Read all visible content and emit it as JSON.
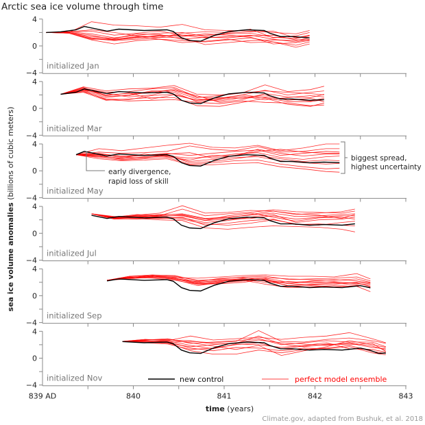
{
  "chart_data": {
    "type": "line",
    "title": "Arctic sea ice volume through time",
    "xlabel_bold": "time",
    "xlabel_rest": " (years)",
    "ylabel_bold": "sea ice volume anomalies",
    "ylabel_rest": " (billions of cubic meters)",
    "xlim": [
      839,
      843
    ],
    "ylim": [
      -4,
      4
    ],
    "x_ticks": [
      839,
      839.5,
      840,
      840.5,
      841,
      841.5,
      842,
      842.5,
      843
    ],
    "x_tick_labels": [
      {
        "value": 839,
        "label": "839 AD"
      },
      {
        "value": 840,
        "label": "840"
      },
      {
        "value": 841,
        "label": "841"
      },
      {
        "value": 842,
        "label": "842"
      },
      {
        "value": 843,
        "label": "843"
      }
    ],
    "y_ticks": [
      -4,
      -2,
      0,
      2,
      4
    ],
    "y_tick_labels": [
      {
        "value": 4,
        "label": "4"
      },
      {
        "value": 0,
        "label": "0"
      },
      {
        "value": -4,
        "label": "−4"
      }
    ],
    "grid": false,
    "colors": {
      "control": "#000000",
      "ensemble": "#ff0000",
      "panel_label": "#777777",
      "axis": "#888888"
    },
    "legend": {
      "placement": "bottom-center (last panel)",
      "control_label": "new control",
      "ensemble_label": "perfect model ensemble"
    },
    "control": {
      "name": "new control",
      "x": [
        839.04,
        839.2,
        839.37,
        839.46,
        839.71,
        839.84,
        840.12,
        840.37,
        840.44,
        840.53,
        840.62,
        840.74,
        840.89,
        841.05,
        841.25,
        841.44,
        841.5,
        841.62,
        841.75,
        841.94,
        842.1,
        842.3,
        842.5,
        842.6,
        842.7,
        842.83
      ],
      "y": [
        2.0,
        2.1,
        2.4,
        2.9,
        2.2,
        2.5,
        2.3,
        2.4,
        2.15,
        1.2,
        0.8,
        0.7,
        1.55,
        2.15,
        2.4,
        2.3,
        1.9,
        1.4,
        1.4,
        1.2,
        1.3,
        1.2,
        1.5,
        1.2,
        0.7,
        0.8
      ]
    },
    "panels": [
      {
        "label": "initialized Jan",
        "x": [
          839.04,
          839.29,
          839.54,
          839.79,
          840.04,
          840.29,
          840.54,
          840.79,
          841.04,
          841.29,
          841.54,
          841.79,
          841.94
        ],
        "ensemble": [
          [
            2.0,
            2.0,
            3.6,
            3.1,
            3.0,
            2.8,
            3.2,
            2.4,
            2.3,
            2.2,
            2.0,
            1.8,
            2.3
          ],
          [
            2.0,
            2.0,
            1.2,
            0.9,
            1.3,
            1.5,
            1.6,
            1.2,
            1.4,
            1.6,
            1.0,
            0.6,
            1.0
          ],
          [
            2.0,
            1.9,
            0.9,
            0.3,
            0.8,
            1.0,
            0.8,
            0.6,
            0.9,
            1.2,
            0.6,
            0.1,
            0.6
          ],
          [
            2.0,
            2.1,
            1.8,
            1.2,
            1.6,
            1.9,
            2.0,
            1.4,
            1.8,
            1.9,
            1.3,
            1.1,
            1.5
          ],
          [
            2.0,
            1.9,
            1.1,
            0.8,
            1.0,
            1.3,
            1.2,
            0.2,
            0.5,
            0.8,
            0.9,
            0.8,
            1.2
          ],
          [
            2.0,
            2.0,
            1.4,
            1.1,
            1.8,
            1.7,
            1.0,
            1.3,
            1.2,
            1.5,
            1.6,
            0.9,
            0.9
          ],
          [
            2.0,
            2.1,
            2.2,
            1.6,
            1.9,
            2.2,
            1.6,
            1.6,
            1.9,
            2.1,
            2.2,
            1.2,
            1.6
          ],
          [
            2.0,
            1.9,
            1.0,
            1.0,
            1.4,
            1.0,
            0.5,
            0.7,
            1.0,
            0.5,
            0.6,
            -0.2,
            0.3
          ],
          [
            2.0,
            2.0,
            1.6,
            0.9,
            1.2,
            1.6,
            1.4,
            1.8,
            1.6,
            1.3,
            0.3,
            0.5,
            0.8
          ],
          [
            2.0,
            2.1,
            2.4,
            2.0,
            1.5,
            1.3,
            1.9,
            2.1,
            2.0,
            2.5,
            1.2,
            1.5,
            2.0
          ]
        ]
      },
      {
        "label": "initialized Mar",
        "x": [
          839.2,
          839.45,
          839.7,
          839.95,
          840.2,
          840.45,
          840.7,
          840.95,
          841.2,
          841.45,
          841.7,
          841.95,
          842.1
        ],
        "ensemble": [
          [
            2.1,
            3.2,
            2.6,
            2.9,
            3.0,
            3.4,
            2.1,
            2.0,
            2.3,
            3.5,
            2.5,
            2.8,
            3.3
          ],
          [
            2.1,
            2.7,
            1.6,
            2.0,
            2.6,
            2.6,
            1.4,
            1.1,
            1.6,
            2.0,
            1.2,
            1.5,
            1.0
          ],
          [
            2.1,
            2.4,
            1.2,
            1.4,
            1.6,
            1.6,
            0.4,
            0.3,
            0.9,
            1.5,
            0.6,
            0.3,
            0.8
          ],
          [
            2.1,
            3.0,
            2.4,
            2.5,
            2.9,
            3.1,
            1.7,
            1.5,
            2.0,
            2.7,
            2.0,
            2.4,
            2.6
          ],
          [
            2.1,
            2.5,
            1.4,
            1.3,
            1.9,
            2.1,
            1.2,
            1.6,
            1.5,
            1.7,
            1.4,
            1.1,
            1.5
          ],
          [
            2.1,
            2.8,
            2.0,
            2.2,
            2.3,
            2.9,
            1.6,
            1.9,
            2.3,
            2.6,
            2.4,
            2.2,
            2.0
          ],
          [
            2.1,
            2.6,
            1.3,
            1.1,
            1.2,
            1.3,
            0.9,
            0.7,
            1.1,
            0.9,
            0.8,
            0.4,
            0.5
          ],
          [
            2.1,
            2.9,
            1.8,
            1.9,
            2.5,
            2.4,
            1.0,
            1.3,
            1.8,
            1.3,
            1.6,
            1.9,
            1.7
          ],
          [
            2.1,
            2.7,
            2.2,
            1.7,
            2.0,
            2.7,
            1.9,
            0.9,
            1.3,
            2.2,
            1.7,
            1.6,
            2.1
          ],
          [
            2.1,
            3.1,
            1.9,
            2.3,
            1.4,
            2.0,
            1.2,
            1.4,
            2.0,
            1.6,
            1.0,
            1.0,
            1.3
          ]
        ]
      },
      {
        "label": "initialized May",
        "x": [
          839.37,
          839.62,
          839.87,
          840.12,
          840.37,
          840.62,
          840.87,
          841.12,
          841.37,
          841.62,
          841.87,
          842.12,
          842.27
        ],
        "ensemble": [
          [
            2.4,
            3.3,
            3.0,
            3.4,
            3.8,
            4.1,
            3.5,
            3.4,
            3.8,
            3.0,
            3.4,
            4.0,
            4.0
          ],
          [
            2.4,
            2.8,
            2.6,
            2.7,
            2.9,
            3.7,
            3.2,
            3.0,
            3.6,
            2.8,
            2.9,
            3.3,
            3.3
          ],
          [
            2.4,
            2.2,
            1.8,
            2.1,
            2.3,
            1.4,
            1.7,
            2.0,
            2.1,
            1.5,
            1.2,
            1.0,
            1.1
          ],
          [
            2.4,
            2.0,
            1.6,
            1.8,
            2.0,
            1.0,
            1.2,
            1.5,
            1.6,
            1.0,
            0.6,
            0.3,
            0.4
          ],
          [
            2.4,
            2.6,
            2.1,
            2.3,
            2.6,
            2.3,
            2.6,
            2.9,
            3.1,
            2.3,
            2.6,
            2.9,
            2.8
          ],
          [
            2.4,
            1.8,
            1.5,
            1.6,
            1.8,
            0.9,
            0.9,
            1.1,
            1.2,
            0.6,
            0.3,
            -0.1,
            -0.2
          ],
          [
            2.4,
            2.4,
            2.0,
            2.0,
            2.2,
            1.9,
            2.1,
            2.5,
            2.7,
            2.0,
            1.7,
            2.1,
            2.2
          ],
          [
            2.4,
            2.1,
            1.9,
            2.5,
            2.1,
            1.6,
            2.3,
            2.2,
            3.2,
            2.6,
            2.2,
            2.5,
            2.5
          ],
          [
            2.4,
            2.3,
            1.7,
            1.9,
            2.4,
            1.2,
            1.4,
            1.8,
            2.3,
            1.8,
            1.4,
            1.6,
            1.5
          ],
          [
            2.4,
            2.5,
            2.2,
            2.3,
            2.5,
            2.7,
            1.9,
            2.3,
            2.9,
            3.2,
            2.8,
            2.6,
            2.6
          ]
        ]
      },
      {
        "label": "initialized Jul",
        "x": [
          839.54,
          839.79,
          840.04,
          840.29,
          840.54,
          840.79,
          841.04,
          841.29,
          841.54,
          841.79,
          842.04,
          842.29,
          842.44
        ],
        "ensemble": [
          [
            2.9,
            2.3,
            2.7,
            3.0,
            4.1,
            3.0,
            3.1,
            3.4,
            3.3,
            2.8,
            3.0,
            3.2,
            3.6
          ],
          [
            2.9,
            2.2,
            2.4,
            2.6,
            3.6,
            2.6,
            2.9,
            3.1,
            3.5,
            3.2,
            3.1,
            3.0,
            3.3
          ],
          [
            2.9,
            2.4,
            2.6,
            2.4,
            2.3,
            1.6,
            1.9,
            2.4,
            2.8,
            1.6,
            2.0,
            2.1,
            2.4
          ],
          [
            2.9,
            2.3,
            2.3,
            2.2,
            2.4,
            1.2,
            1.5,
            1.9,
            2.1,
            1.3,
            1.4,
            1.2,
            1.1
          ],
          [
            2.9,
            2.1,
            2.2,
            2.0,
            1.9,
            0.8,
            0.6,
            0.9,
            1.1,
            1.0,
            0.9,
            0.6,
            0.2
          ],
          [
            2.9,
            2.5,
            2.5,
            2.7,
            2.9,
            2.2,
            2.4,
            2.7,
            3.0,
            2.5,
            2.6,
            2.8,
            2.9
          ],
          [
            2.9,
            2.4,
            2.8,
            2.6,
            2.6,
            1.9,
            2.1,
            2.2,
            2.6,
            2.1,
            2.4,
            2.6,
            2.6
          ],
          [
            2.9,
            2.2,
            2.1,
            2.3,
            2.1,
            1.4,
            1.2,
            1.5,
            2.0,
            1.4,
            1.2,
            1.6,
            1.8
          ],
          [
            2.9,
            2.3,
            2.4,
            2.5,
            2.7,
            1.9,
            2.6,
            3.0,
            2.4,
            1.8,
            2.3,
            2.4,
            2.1
          ],
          [
            2.9,
            2.2,
            2.6,
            2.8,
            2.8,
            2.1,
            2.3,
            2.8,
            3.3,
            2.9,
            2.7,
            2.2,
            2.8
          ]
        ]
      },
      {
        "label": "initialized Sep",
        "x": [
          839.71,
          839.96,
          840.21,
          840.46,
          840.71,
          840.96,
          841.21,
          841.46,
          841.71,
          841.96,
          842.21,
          842.46,
          842.61
        ],
        "ensemble": [
          [
            2.3,
            2.7,
            3.0,
            2.7,
            2.6,
            2.8,
            3.0,
            3.1,
            2.9,
            2.9,
            2.8,
            3.3,
            2.5
          ],
          [
            2.3,
            2.9,
            3.1,
            3.0,
            2.2,
            2.5,
            2.8,
            2.9,
            2.4,
            2.5,
            2.6,
            2.8,
            2.2
          ],
          [
            2.3,
            2.6,
            2.9,
            2.6,
            1.9,
            2.2,
            2.4,
            2.6,
            2.0,
            2.1,
            2.0,
            1.9,
            1.4
          ],
          [
            2.3,
            2.8,
            2.7,
            2.5,
            1.8,
            1.9,
            2.3,
            1.7,
            1.2,
            1.3,
            1.5,
            1.4,
            0.6
          ],
          [
            2.3,
            2.5,
            2.8,
            2.4,
            1.5,
            2.0,
            2.2,
            2.4,
            1.8,
            1.6,
            1.7,
            2.0,
            1.8
          ],
          [
            2.3,
            2.9,
            3.0,
            2.9,
            2.3,
            2.4,
            2.5,
            2.2,
            1.5,
            1.7,
            1.9,
            1.6,
            1.2
          ],
          [
            2.3,
            2.7,
            2.6,
            2.3,
            1.7,
            2.1,
            2.6,
            2.7,
            2.5,
            2.4,
            2.3,
            2.5,
            2.0
          ],
          [
            2.3,
            2.6,
            2.9,
            2.8,
            2.0,
            2.3,
            2.4,
            2.0,
            2.1,
            1.9,
            2.1,
            1.8,
            1.6
          ],
          [
            2.3,
            2.8,
            2.8,
            2.5,
            2.1,
            2.6,
            2.7,
            2.3,
            1.8,
            2.2,
            2.4,
            2.2,
            1.9
          ],
          [
            2.3,
            2.7,
            3.0,
            2.6,
            1.7,
            1.8,
            2.0,
            2.5,
            1.4,
            1.5,
            1.3,
            1.5,
            1.3
          ]
        ]
      },
      {
        "label": "initialized Nov",
        "x": [
          839.88,
          840.13,
          840.38,
          840.63,
          840.88,
          841.13,
          841.38,
          841.63,
          841.88,
          842.13,
          842.38,
          842.63,
          842.78
        ],
        "ensemble": [
          [
            2.5,
            2.8,
            2.6,
            3.3,
            2.7,
            2.9,
            3.1,
            2.8,
            3.1,
            3.3,
            3.8,
            2.9,
            2.3
          ],
          [
            2.5,
            2.6,
            2.4,
            2.5,
            2.3,
            2.5,
            4.1,
            2.5,
            2.4,
            2.8,
            3.0,
            2.6,
            2.2
          ],
          [
            2.5,
            2.3,
            2.1,
            1.3,
            1.5,
            2.0,
            2.3,
            1.4,
            1.8,
            2.0,
            2.2,
            1.6,
            1.4
          ],
          [
            2.5,
            2.5,
            2.3,
            1.1,
            0.6,
            0.6,
            1.2,
            0.8,
            1.3,
            1.5,
            1.9,
            1.0,
            0.7
          ],
          [
            2.5,
            2.7,
            2.9,
            2.2,
            2.4,
            2.6,
            2.9,
            2.0,
            2.3,
            2.6,
            2.4,
            2.4,
            1.7
          ],
          [
            2.5,
            2.4,
            2.2,
            1.7,
            2.0,
            2.3,
            2.7,
            2.3,
            2.1,
            1.9,
            2.3,
            1.8,
            1.2
          ],
          [
            2.5,
            2.6,
            2.5,
            1.5,
            1.1,
            1.6,
            1.5,
            1.1,
            1.5,
            1.4,
            1.7,
            0.8,
            0.5
          ],
          [
            2.5,
            2.8,
            2.7,
            2.6,
            2.1,
            2.2,
            3.3,
            2.1,
            1.7,
            2.1,
            2.0,
            2.2,
            1.0
          ],
          [
            2.5,
            2.5,
            2.6,
            1.9,
            1.4,
            2.1,
            2.0,
            1.6,
            1.9,
            2.3,
            1.4,
            1.3,
            0.9
          ],
          [
            2.5,
            2.7,
            2.8,
            2.3,
            1.8,
            1.3,
            1.9,
            0.4,
            1.1,
            1.7,
            2.6,
            2.0,
            1.6
          ]
        ]
      }
    ],
    "annotations": {
      "early": [
        "early divergence,",
        "rapid loss of skill"
      ],
      "spread": [
        "biggest spread,",
        "highest uncertainty"
      ]
    },
    "credit": "Climate.gov, adapted from Bushuk, et al. 2018"
  }
}
